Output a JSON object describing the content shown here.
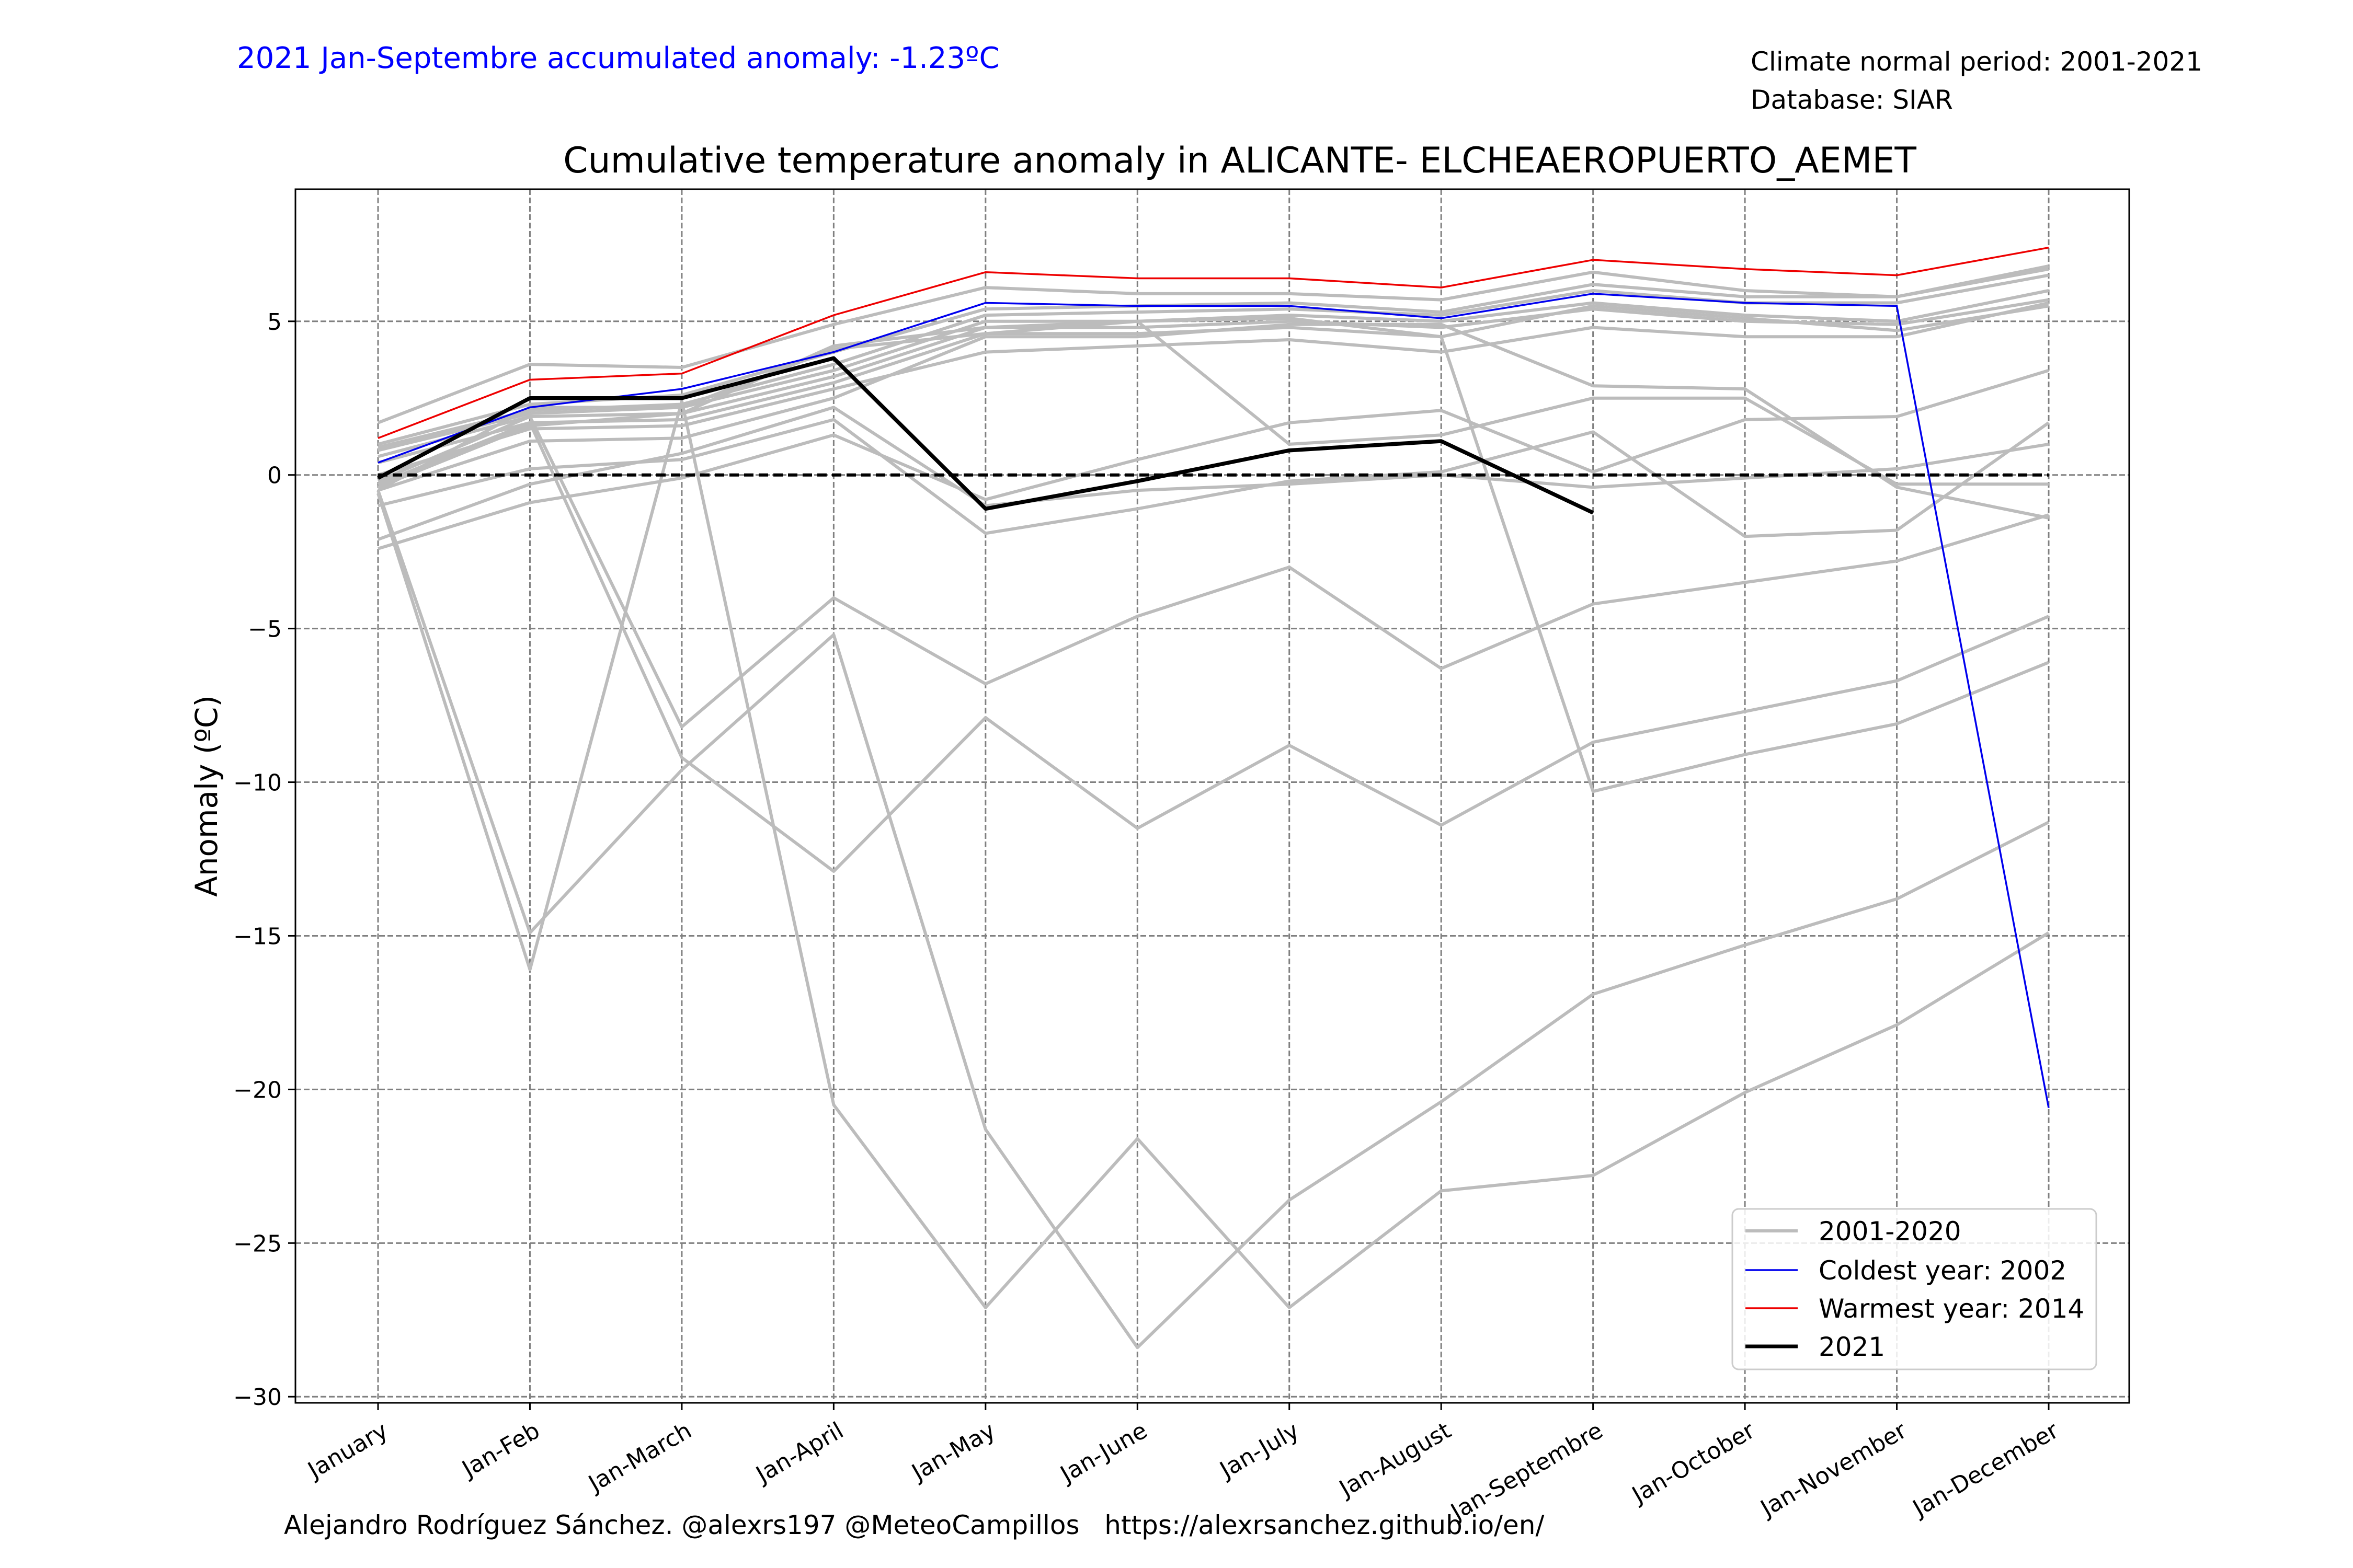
{
  "header": {
    "accumulated": "2021 Jan-Septembre accumulated anomaly: -1.23ºC",
    "normal_period": "Climate normal period: 2001-2021",
    "database": "Database: SIAR"
  },
  "footer": {
    "credit": "Alejandro Rodríguez Sánchez. @alexrs197 @MeteoCampillos   https://alexrsanchez.github.io/en/"
  },
  "colors": {
    "history": "#bcbcbc",
    "coldest": "#0000ee",
    "warmest": "#ee0000",
    "current": "#000000",
    "accent_text": "#0000ff"
  },
  "chart_data": {
    "type": "line",
    "title": "Cumulative temperature anomaly in ALICANTE- ELCHEAEROPUERTO_AEMET",
    "xlabel": "",
    "ylabel": "Anomaly (ºC)",
    "ylim": [
      -30.2,
      9.3
    ],
    "yticks": [
      -30,
      -25,
      -20,
      -15,
      -10,
      -5,
      0,
      5
    ],
    "grid": true,
    "legend_position": "lower-right",
    "categories": [
      "January",
      "Jan-Feb",
      "Jan-March",
      "Jan-April",
      "Jan-May",
      "Jan-June",
      "Jan-July",
      "Jan-August",
      "Jan-Septembre",
      "Jan-October",
      "Jan-November",
      "Jan-December"
    ],
    "legend": [
      {
        "label": "2001-2020",
        "kind": "history"
      },
      {
        "label": "Coldest year: 2002",
        "kind": "coldest"
      },
      {
        "label": "Warmest year: 2014",
        "kind": "warmest"
      },
      {
        "label": "2021",
        "kind": "current"
      }
    ],
    "history": [
      [
        1.7,
        3.6,
        3.5,
        4.9,
        6.1,
        5.9,
        5.9,
        5.7,
        6.6,
        6.0,
        5.8,
        6.8
      ],
      [
        1.0,
        2.3,
        2.6,
        4.0,
        5.4,
        5.5,
        5.6,
        5.3,
        6.2,
        5.8,
        5.8,
        6.7
      ],
      [
        0.9,
        2.1,
        2.3,
        3.6,
        5.2,
        5.3,
        5.4,
        5.2,
        6.0,
        5.6,
        5.6,
        6.5
      ],
      [
        0.8,
        2.0,
        2.2,
        3.4,
        5.0,
        5.0,
        5.2,
        5.0,
        5.6,
        5.2,
        5.0,
        6.0
      ],
      [
        0.6,
        1.9,
        2.0,
        3.2,
        4.8,
        4.8,
        5.0,
        4.8,
        5.4,
        5.0,
        4.9,
        5.7
      ],
      [
        0.4,
        1.7,
        1.8,
        3.0,
        4.6,
        4.6,
        4.8,
        4.5,
        5.5,
        5.1,
        4.7,
        5.5
      ],
      [
        0.0,
        1.5,
        1.6,
        2.8,
        4.0,
        4.2,
        4.4,
        4.0,
        4.8,
        4.5,
        4.5,
        5.6
      ],
      [
        -0.5,
        1.1,
        1.2,
        2.5,
        4.5,
        4.5,
        4.9,
        4.9,
        2.9,
        2.8,
        -0.4,
        -1.4
      ],
      [
        -1.0,
        0.2,
        0.5,
        1.8,
        -1.9,
        -1.1,
        -0.2,
        0.1,
        1.4,
        -2.0,
        -1.8,
        1.7
      ],
      [
        -2.4,
        -0.9,
        -0.1,
        1.3,
        -0.8,
        0.5,
        1.7,
        2.1,
        0.1,
        1.8,
        1.9,
        3.4
      ],
      [
        -2.1,
        -0.3,
        0.7,
        2.2,
        -1.0,
        -0.5,
        -0.3,
        0.0,
        -0.4,
        -0.1,
        0.2,
        1.0
      ],
      [
        -0.5,
        2.2,
        2.2,
        4.1,
        4.6,
        5.0,
        1.0,
        1.3,
        2.5,
        2.5,
        -0.3,
        -0.3
      ],
      [
        -0.2,
        1.9,
        -8.2,
        -4.0,
        -6.8,
        -4.6,
        -3.0,
        -6.3,
        -4.2,
        -3.5,
        -2.8,
        -1.3
      ],
      [
        -0.3,
        1.7,
        -9.2,
        -12.9,
        -7.9,
        -11.5,
        -8.8,
        -11.4,
        -8.7,
        -7.7,
        -6.7,
        -4.6
      ],
      [
        -0.5,
        -14.9,
        -9.6,
        -5.2,
        -21.3,
        -28.4,
        -23.6,
        -20.4,
        -16.9,
        -15.3,
        -13.8,
        -11.3
      ],
      [
        -0.6,
        -16.1,
        2.4,
        -20.5,
        -27.1,
        -21.6,
        -27.1,
        -23.3,
        -22.8,
        -20.1,
        -17.9,
        -14.9
      ],
      [
        -0.4,
        1.6,
        2.0,
        4.2,
        4.8,
        5.0,
        5.1,
        4.5,
        -10.3,
        -9.1,
        -8.1,
        -6.1
      ]
    ],
    "coldest": {
      "name": "Coldest year: 2002",
      "values": [
        0.4,
        2.2,
        2.8,
        4.0,
        5.6,
        5.5,
        5.5,
        5.1,
        5.9,
        5.6,
        5.5,
        -20.6
      ]
    },
    "warmest": {
      "name": "Warmest year: 2014",
      "values": [
        1.2,
        3.1,
        3.3,
        5.2,
        6.6,
        6.4,
        6.4,
        6.1,
        7.0,
        6.7,
        6.5,
        7.4
      ]
    },
    "current": {
      "name": "2021",
      "values": [
        -0.1,
        2.5,
        2.5,
        3.8,
        -1.1,
        -0.2,
        0.8,
        1.1,
        -1.23
      ]
    }
  }
}
